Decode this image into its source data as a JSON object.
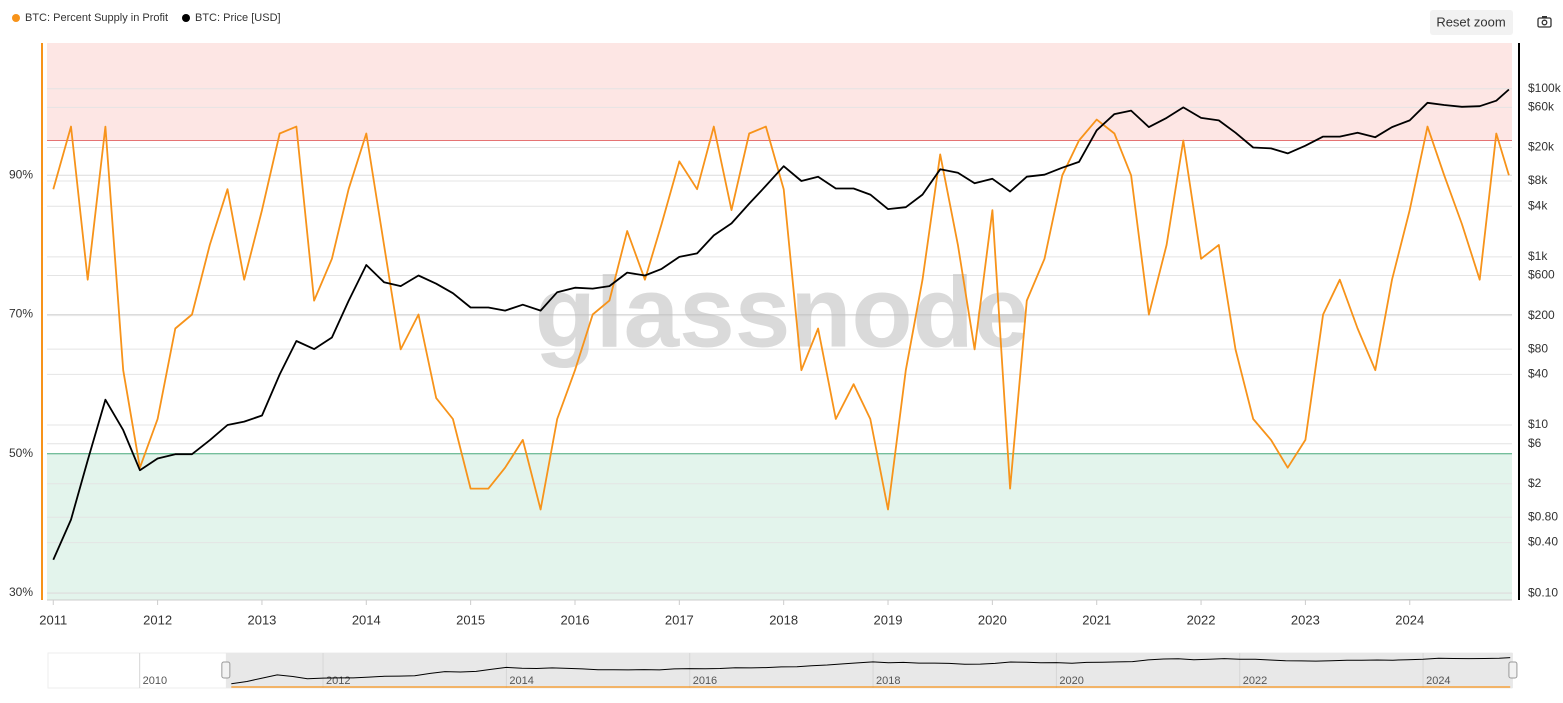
{
  "chart_data": {
    "type": "line",
    "watermark": "glassnode",
    "x": [
      2011,
      2011.17,
      2011.33,
      2011.5,
      2011.67,
      2011.83,
      2012,
      2012.17,
      2012.33,
      2012.5,
      2012.67,
      2012.83,
      2013,
      2013.17,
      2013.33,
      2013.5,
      2013.67,
      2013.83,
      2014,
      2014.17,
      2014.33,
      2014.5,
      2014.67,
      2014.83,
      2015,
      2015.17,
      2015.33,
      2015.5,
      2015.67,
      2015.83,
      2016,
      2016.17,
      2016.33,
      2016.5,
      2016.67,
      2016.83,
      2017,
      2017.17,
      2017.33,
      2017.5,
      2017.67,
      2017.83,
      2018,
      2018.17,
      2018.33,
      2018.5,
      2018.67,
      2018.83,
      2019,
      2019.17,
      2019.33,
      2019.5,
      2019.67,
      2019.83,
      2020,
      2020.17,
      2020.33,
      2020.5,
      2020.67,
      2020.83,
      2021,
      2021.17,
      2021.33,
      2021.5,
      2021.67,
      2021.83,
      2022,
      2022.17,
      2022.33,
      2022.5,
      2022.67,
      2022.83,
      2023,
      2023.17,
      2023.33,
      2023.5,
      2023.67,
      2023.83,
      2024,
      2024.17,
      2024.33,
      2024.5,
      2024.67,
      2024.83,
      2024.95
    ],
    "series": [
      {
        "name": "BTC: Percent Supply in Profit",
        "color": "#f7931a",
        "values": [
          88,
          97,
          75,
          97,
          62,
          48,
          55,
          68,
          70,
          80,
          88,
          75,
          85,
          96,
          97,
          72,
          78,
          88,
          96,
          80,
          65,
          70,
          58,
          55,
          45,
          45,
          48,
          52,
          42,
          55,
          62,
          70,
          72,
          82,
          75,
          83,
          92,
          88,
          97,
          85,
          96,
          97,
          88,
          62,
          68,
          55,
          60,
          55,
          42,
          62,
          75,
          93,
          80,
          65,
          85,
          45,
          72,
          78,
          90,
          95,
          98,
          96,
          90,
          70,
          80,
          95,
          78,
          80,
          65,
          55,
          52,
          48,
          52,
          70,
          75,
          68,
          62,
          75,
          85,
          97,
          90,
          83,
          75,
          96,
          90
        ]
      },
      {
        "name": "BTC: Price [USD]",
        "color": "#000000",
        "axis": "y2",
        "values": [
          0.25,
          0.75,
          3.8,
          20,
          8.7,
          2.9,
          4,
          4.5,
          4.5,
          6.6,
          10,
          11,
          13,
          40,
          100,
          80,
          110,
          300,
          800,
          500,
          450,
          600,
          480,
          370,
          250,
          250,
          230,
          270,
          230,
          380,
          430,
          420,
          450,
          650,
          600,
          720,
          1000,
          1100,
          1800,
          2500,
          4300,
          7000,
          12000,
          8000,
          9000,
          6500,
          6500,
          5500,
          3700,
          3900,
          5500,
          11000,
          10000,
          7500,
          8500,
          6000,
          9000,
          9500,
          11500,
          13500,
          32000,
          50000,
          55000,
          35000,
          45000,
          60000,
          45000,
          42000,
          30000,
          20000,
          19500,
          17000,
          21000,
          27000,
          27000,
          30000,
          26500,
          35000,
          42000,
          68000,
          64000,
          61000,
          62000,
          72000,
          98000
        ]
      }
    ],
    "xlim": [
      2010.94,
      2024.98
    ],
    "xticks": [
      2011,
      2012,
      2013,
      2014,
      2015,
      2016,
      2017,
      2018,
      2019,
      2020,
      2021,
      2022,
      2023,
      2024
    ],
    "ylim": [
      29,
      109
    ],
    "yticks": [
      {
        "value": 30,
        "label": "30%"
      },
      {
        "value": 50,
        "label": "50%"
      },
      {
        "value": 70,
        "label": "70%"
      },
      {
        "value": 90,
        "label": "90%"
      }
    ],
    "y2scale": "log",
    "y2lim": [
      0.083,
      350000
    ],
    "y2ticks": [
      {
        "value": 0.1,
        "label": "$0.10"
      },
      {
        "value": 0.4,
        "label": "$0.40"
      },
      {
        "value": 0.8,
        "label": "$0.80"
      },
      {
        "value": 2,
        "label": "$2"
      },
      {
        "value": 6,
        "label": "$6"
      },
      {
        "value": 10,
        "label": "$10"
      },
      {
        "value": 40,
        "label": "$40"
      },
      {
        "value": 80,
        "label": "$80"
      },
      {
        "value": 200,
        "label": "$200"
      },
      {
        "value": 600,
        "label": "$600"
      },
      {
        "value": 1000,
        "label": "$1k"
      },
      {
        "value": 4000,
        "label": "$4k"
      },
      {
        "value": 8000,
        "label": "$8k"
      },
      {
        "value": 20000,
        "label": "$20k"
      },
      {
        "value": 60000,
        "label": "$60k"
      },
      {
        "value": 100000,
        "label": "$100k"
      }
    ],
    "grid": true,
    "thresholds": [
      {
        "value": 95,
        "color": "#e57373",
        "fill": "#fde6e4",
        "side": "above"
      },
      {
        "value": 50,
        "color": "#4caf80",
        "fill": "#e3f4ec",
        "side": "below"
      }
    ],
    "navigator": {
      "xlim": [
        2009,
        2024.97
      ],
      "xticks": [
        2010,
        2012,
        2014,
        2016,
        2018,
        2020,
        2022,
        2024
      ],
      "selection": [
        2010.94,
        2024.98
      ]
    }
  },
  "controls": {
    "reset_zoom": "Reset zoom"
  }
}
